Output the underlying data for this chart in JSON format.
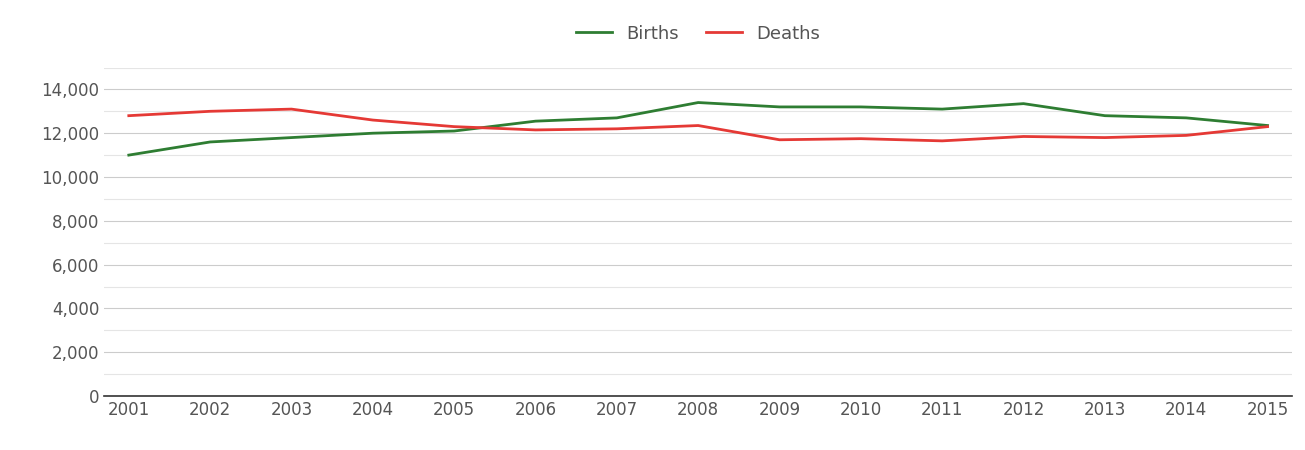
{
  "years": [
    2001,
    2002,
    2003,
    2004,
    2005,
    2006,
    2007,
    2008,
    2009,
    2010,
    2011,
    2012,
    2013,
    2014,
    2015
  ],
  "births": [
    11000,
    11600,
    11800,
    12000,
    12100,
    12550,
    12700,
    13400,
    13200,
    13200,
    13100,
    13350,
    12800,
    12700,
    12350
  ],
  "deaths": [
    12800,
    13000,
    13100,
    12600,
    12300,
    12150,
    12200,
    12350,
    11700,
    11750,
    11650,
    11850,
    11800,
    11900,
    12300
  ],
  "births_color": "#2e7d32",
  "deaths_color": "#e53935",
  "background_color": "#ffffff",
  "major_grid_color": "#cccccc",
  "minor_grid_color": "#e5e5e5",
  "bottom_line_color": "#333333",
  "legend_labels": [
    "Births",
    "Deaths"
  ],
  "ylim": [
    0,
    15000
  ],
  "yticks_major": [
    0,
    2000,
    4000,
    6000,
    8000,
    10000,
    12000,
    14000
  ],
  "line_width": 2.0,
  "tick_label_color": "#555555",
  "tick_fontsize": 12,
  "legend_fontsize": 13
}
